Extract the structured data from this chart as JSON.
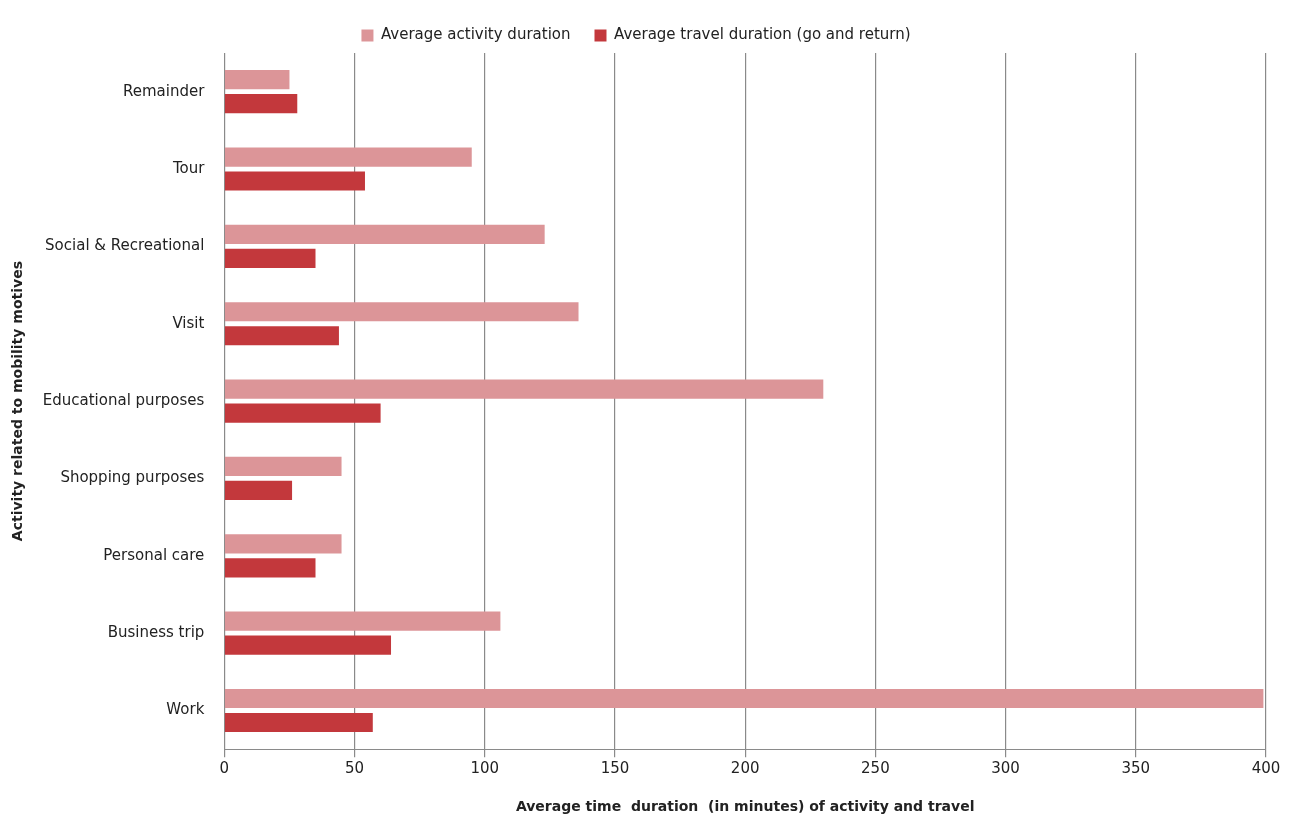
{
  "chart_data": {
    "type": "bar",
    "orientation": "horizontal",
    "xlabel": "Average time  duration  (in minutes) of activity and travel",
    "ylabel": "Activity related to mobility motives",
    "categories": [
      "Remainder",
      "Tour",
      "Social & Recreational",
      "Visit",
      "Educational purposes",
      "Shopping purposes",
      "Personal care",
      "Business trip",
      "Work"
    ],
    "series": [
      {
        "name": "Average activity duration",
        "color": "#dc9598",
        "values": [
          25,
          95,
          123,
          136,
          230,
          45,
          45,
          106,
          399
        ]
      },
      {
        "name": "Average travel duration (go and return)",
        "color": "#c3383c",
        "values": [
          28,
          54,
          35,
          44,
          60,
          26,
          35,
          64,
          57
        ]
      }
    ],
    "xlim": [
      0,
      400
    ],
    "xticks": [
      0,
      50,
      100,
      150,
      200,
      250,
      300,
      350,
      400
    ],
    "grid": "x",
    "legend": "top"
  }
}
